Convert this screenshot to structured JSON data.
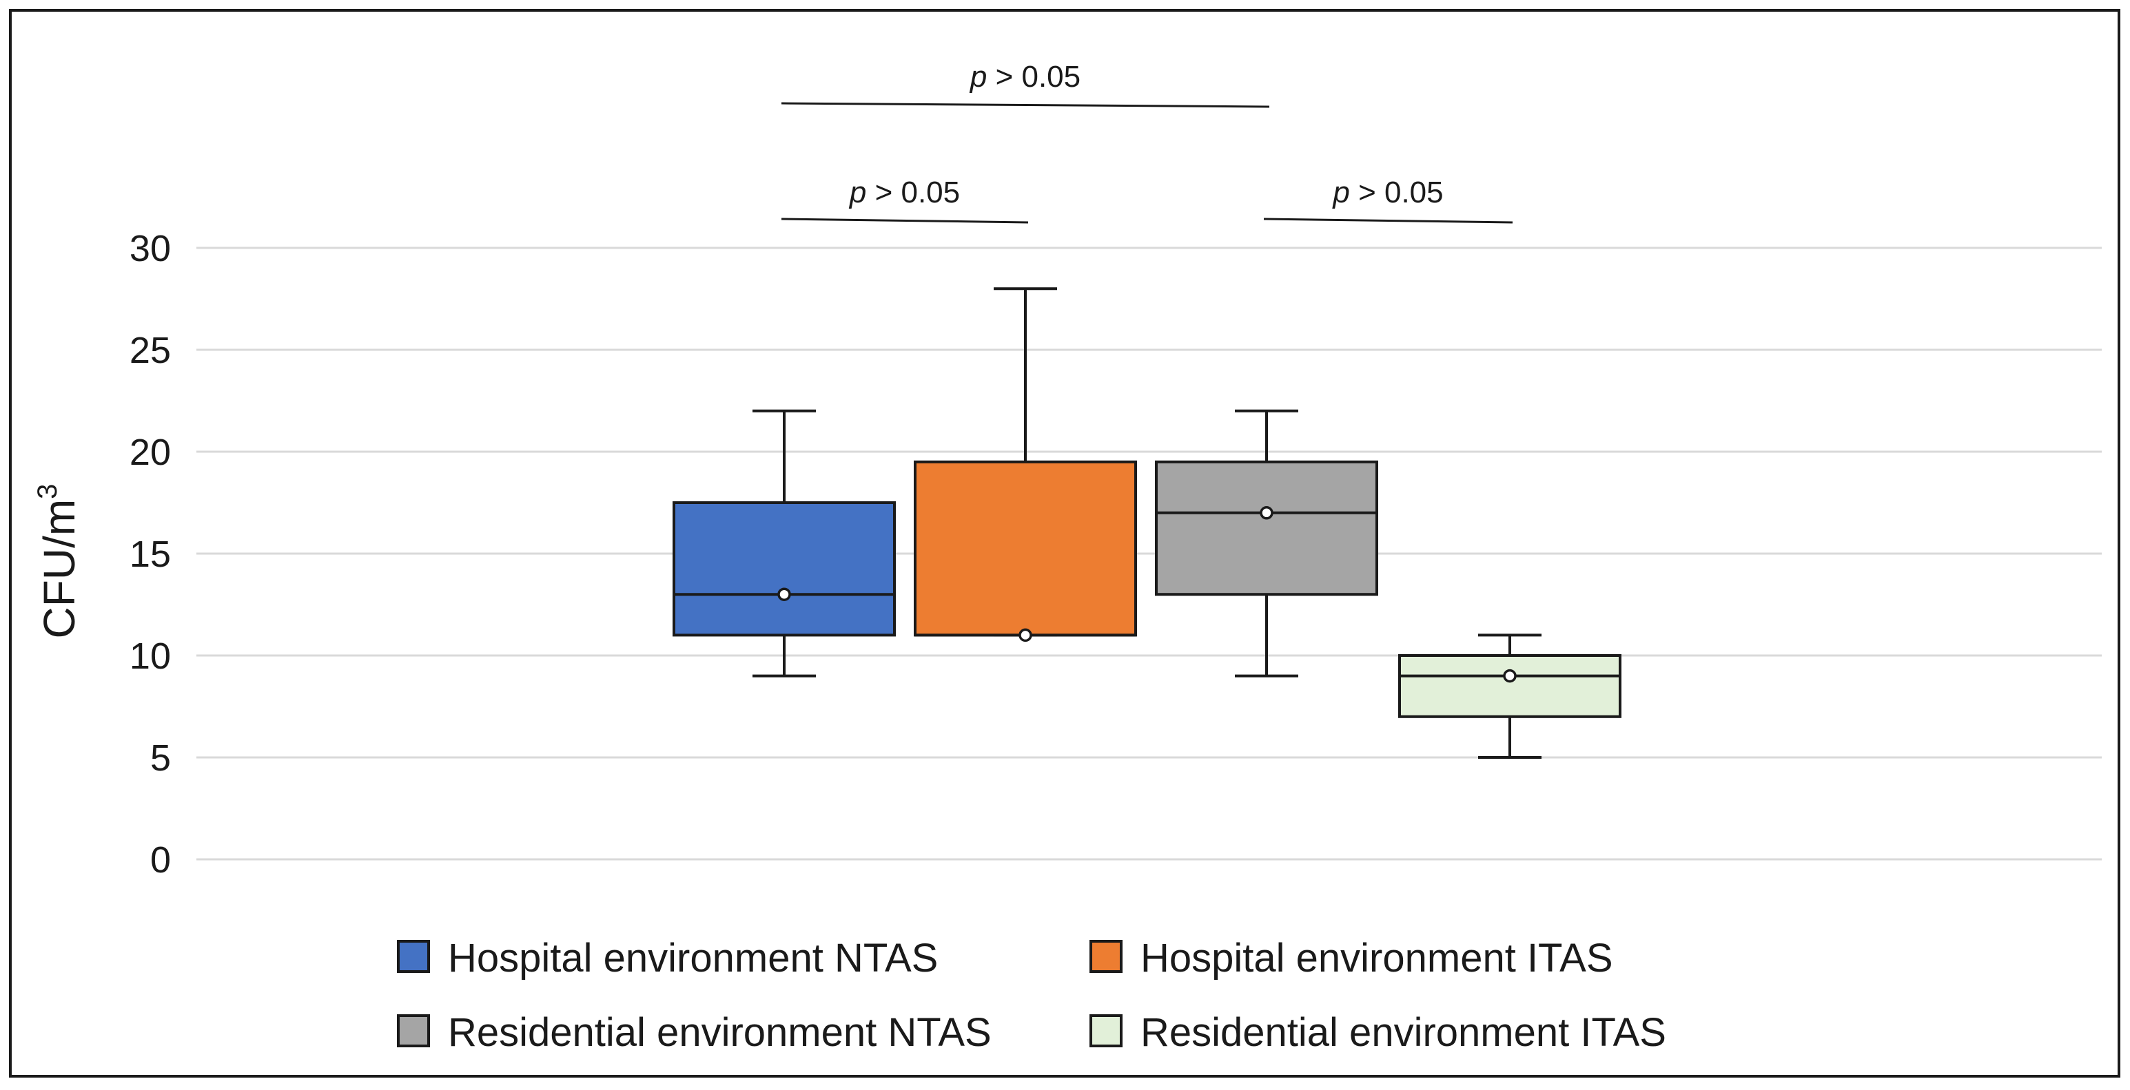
{
  "chart_data": {
    "type": "box",
    "title": "",
    "xlabel": "",
    "ylabel": "CFU/m",
    "ylabel_superscript": "3",
    "ylim": [
      0,
      30
    ],
    "yticks": [
      0,
      5,
      10,
      15,
      20,
      25,
      30
    ],
    "ytick_labels": [
      "0",
      "5",
      "10",
      "15",
      "20",
      "25",
      "30"
    ],
    "grid": true,
    "legend_position": "bottom",
    "series": [
      {
        "name": "Hospital environment NTAS",
        "color": "#4472C4",
        "whisker_low": 9,
        "q1": 11,
        "median": 13,
        "q3": 17.5,
        "whisker_high": 22,
        "mean": 13
      },
      {
        "name": "Hospital environment ITAS",
        "color": "#ED7D31",
        "whisker_low": 11,
        "q1": 11,
        "median": 11,
        "q3": 19.5,
        "whisker_high": 28,
        "mean": 11
      },
      {
        "name": "Residential environment NTAS",
        "color": "#A5A5A5",
        "whisker_low": 9,
        "q1": 13,
        "median": 17,
        "q3": 19.5,
        "whisker_high": 22,
        "mean": 17
      },
      {
        "name": "Residential environment ITAS",
        "color": "#E2F0D9",
        "whisker_low": 5,
        "q1": 7,
        "median": 9,
        "q3": 10,
        "whisker_high": 11,
        "mean": 9
      }
    ],
    "annotations": [
      {
        "p_symbol": "p",
        "text": " > 0.05",
        "from_series": 0,
        "to_series": 2,
        "level": 2
      },
      {
        "p_symbol": "p",
        "text": " > 0.05",
        "from_series": 0,
        "to_series": 1,
        "level": 1
      },
      {
        "p_symbol": "p",
        "text": " > 0.05",
        "from_series": 2,
        "to_series": 3,
        "level": 1
      }
    ]
  }
}
